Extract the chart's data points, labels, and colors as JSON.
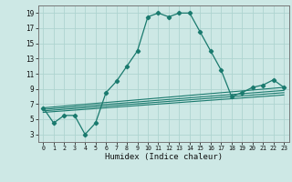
{
  "xlabel": "Humidex (Indice chaleur)",
  "ylabel": "",
  "bg_color": "#cde8e5",
  "line_color": "#1a7a6e",
  "grid_color": "#aed4d0",
  "xlim": [
    -0.5,
    23.5
  ],
  "ylim": [
    2,
    20
  ],
  "yticks": [
    3,
    5,
    7,
    9,
    11,
    13,
    15,
    17,
    19
  ],
  "xticks": [
    0,
    1,
    2,
    3,
    4,
    5,
    6,
    7,
    8,
    9,
    10,
    11,
    12,
    13,
    14,
    15,
    16,
    17,
    18,
    19,
    20,
    21,
    22,
    23
  ],
  "main_x": [
    0,
    1,
    2,
    3,
    4,
    5,
    6,
    7,
    8,
    9,
    10,
    11,
    12,
    13,
    14,
    15,
    16,
    17,
    18,
    19,
    20,
    21,
    22,
    23
  ],
  "main_y": [
    6.5,
    4.5,
    5.5,
    5.5,
    3.0,
    4.5,
    8.5,
    10.0,
    12.0,
    14.0,
    18.5,
    19.0,
    18.5,
    19.0,
    19.0,
    16.5,
    14.0,
    11.5,
    8.0,
    8.5,
    9.2,
    9.5,
    10.2,
    9.2
  ],
  "flat_lines": [
    {
      "x": [
        0,
        23
      ],
      "y": [
        6.5,
        9.2
      ]
    },
    {
      "x": [
        0,
        23
      ],
      "y": [
        6.3,
        8.8
      ]
    },
    {
      "x": [
        0,
        23
      ],
      "y": [
        6.1,
        8.5
      ]
    },
    {
      "x": [
        0,
        23
      ],
      "y": [
        5.9,
        8.2
      ]
    }
  ]
}
